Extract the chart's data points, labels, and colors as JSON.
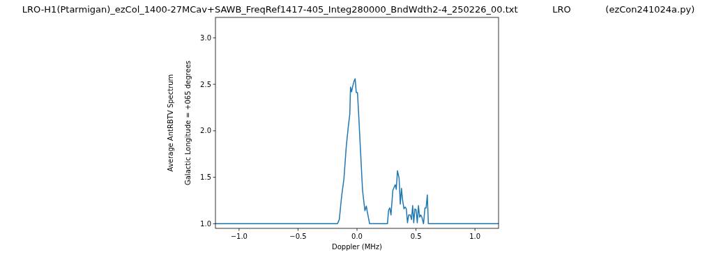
{
  "chart_data": {
    "type": "line",
    "title": "LRO-H1(Ptarmigan)_ezCol_1400-27MCav+SAWB_FreqRef1417-405_Integ280000_BndWdth2-4_250226_00.txt            LRO            (ezCon241024a.py)",
    "xlabel": "Doppler (MHz)",
    "ylabel": "Average AntRBTV Spectrum\nGalactic Longitude = +065 degrees",
    "xlim": [
      -1.2,
      1.2
    ],
    "ylim": [
      0.95,
      3.22
    ],
    "xticks": [
      {
        "value": -1,
        "label": "−1.0"
      },
      {
        "value": -0.5,
        "label": "−0.5"
      },
      {
        "value": 0,
        "label": "0.0"
      },
      {
        "value": 0.5,
        "label": "0.5"
      },
      {
        "value": 1,
        "label": "1.0"
      }
    ],
    "yticks": [
      {
        "value": 1,
        "label": "1.0"
      },
      {
        "value": 1.5,
        "label": "1.5"
      },
      {
        "value": 2,
        "label": "2.0"
      },
      {
        "value": 2.5,
        "label": "2.5"
      },
      {
        "value": 3,
        "label": "3.0"
      }
    ],
    "grid": false,
    "line_style": "solid",
    "x": [
      -1.2,
      -0.166,
      -0.15,
      -0.13,
      -0.111,
      -0.091,
      -0.075,
      -0.061,
      -0.055,
      -0.046,
      -0.036,
      -0.026,
      -0.016,
      -0.006,
      0.004,
      0.014,
      0.028,
      0.047,
      0.067,
      0.079,
      0.087,
      0.107,
      0.258,
      0.268,
      0.278,
      0.288,
      0.304,
      0.314,
      0.324,
      0.333,
      0.343,
      0.357,
      0.367,
      0.377,
      0.386,
      0.398,
      0.408,
      0.418,
      0.428,
      0.438,
      0.452,
      0.462,
      0.472,
      0.481,
      0.491,
      0.501,
      0.511,
      0.521,
      0.531,
      0.54,
      0.55,
      0.564,
      0.576,
      0.586,
      0.596,
      0.605,
      1.2
    ],
    "series": [
      {
        "color": "#1f77b4",
        "values": [
          1.0,
          1.0,
          1.045,
          1.3,
          1.48,
          1.83,
          2.03,
          2.18,
          2.47,
          2.42,
          2.48,
          2.53,
          2.56,
          2.41,
          2.41,
          2.18,
          1.83,
          1.36,
          1.14,
          1.19,
          1.13,
          1.0,
          1.0,
          1.145,
          1.17,
          1.095,
          1.36,
          1.39,
          1.42,
          1.37,
          1.57,
          1.49,
          1.21,
          1.38,
          1.26,
          1.16,
          1.18,
          1.16,
          1.01,
          1.095,
          1.095,
          1.045,
          1.195,
          1.01,
          1.16,
          1.15,
          1.01,
          1.195,
          1.07,
          1.095,
          1.07,
          1.0,
          1.17,
          1.17,
          1.31,
          1.0,
          1.0
        ]
      }
    ]
  }
}
